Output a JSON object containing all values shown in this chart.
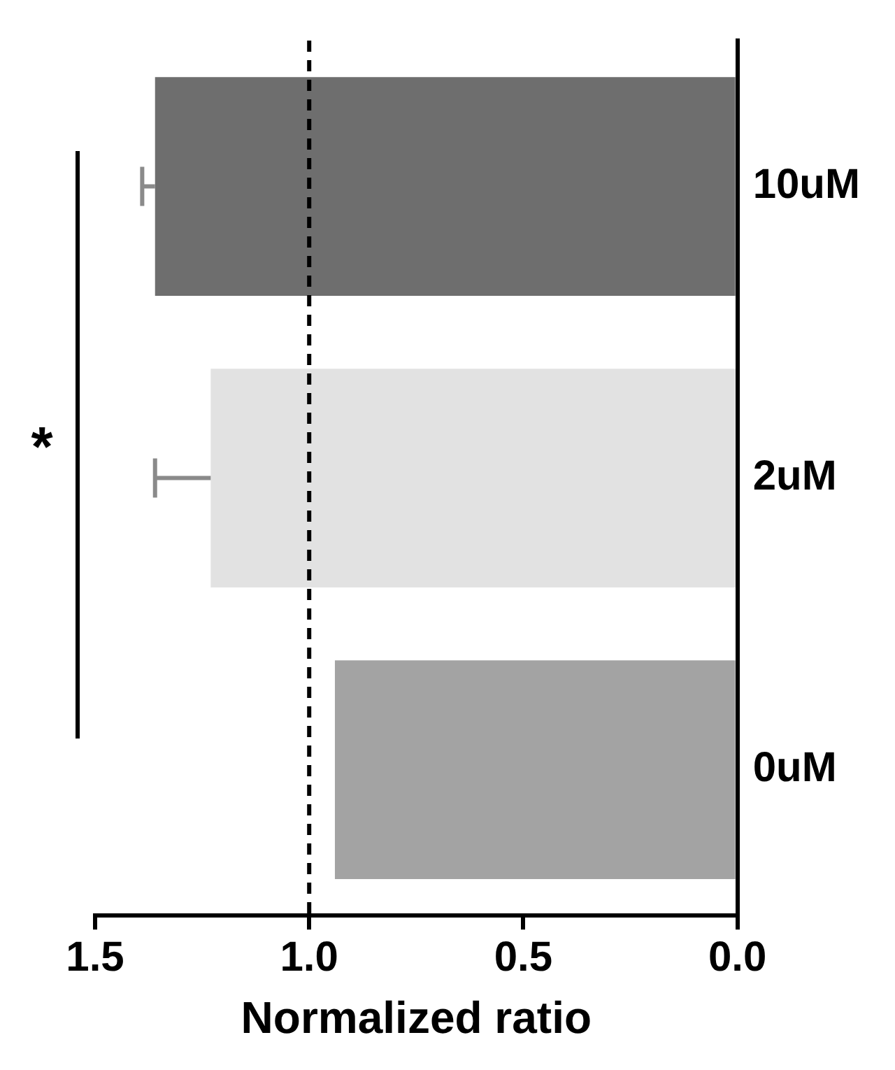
{
  "chart_data": {
    "type": "bar",
    "orientation": "horizontal",
    "categories": [
      "10uM",
      "2uM",
      "0uM"
    ],
    "values": [
      1.36,
      1.23,
      0.94
    ],
    "colors": [
      "#6e6e6e",
      "#e2e2e2",
      "#a3a3a3"
    ],
    "errors": [
      [
        1.36,
        1.39
      ],
      [
        1.23,
        1.36
      ],
      null
    ],
    "xlabel": "Normalized ratio",
    "xlim": [
      1.5,
      0
    ],
    "xticks": [
      {
        "value": 1.5,
        "label": "1.5"
      },
      {
        "value": 1.0,
        "label": "1.0"
      },
      {
        "value": 0.5,
        "label": "0.5"
      },
      {
        "value": 0,
        "label": "0.0"
      }
    ],
    "ref_lines": [
      {
        "axis": "x",
        "value": 1.0,
        "line_style": "dashed",
        "color": "#000000"
      }
    ],
    "annotations": [
      "*"
    ],
    "grid": false,
    "legend": false
  }
}
